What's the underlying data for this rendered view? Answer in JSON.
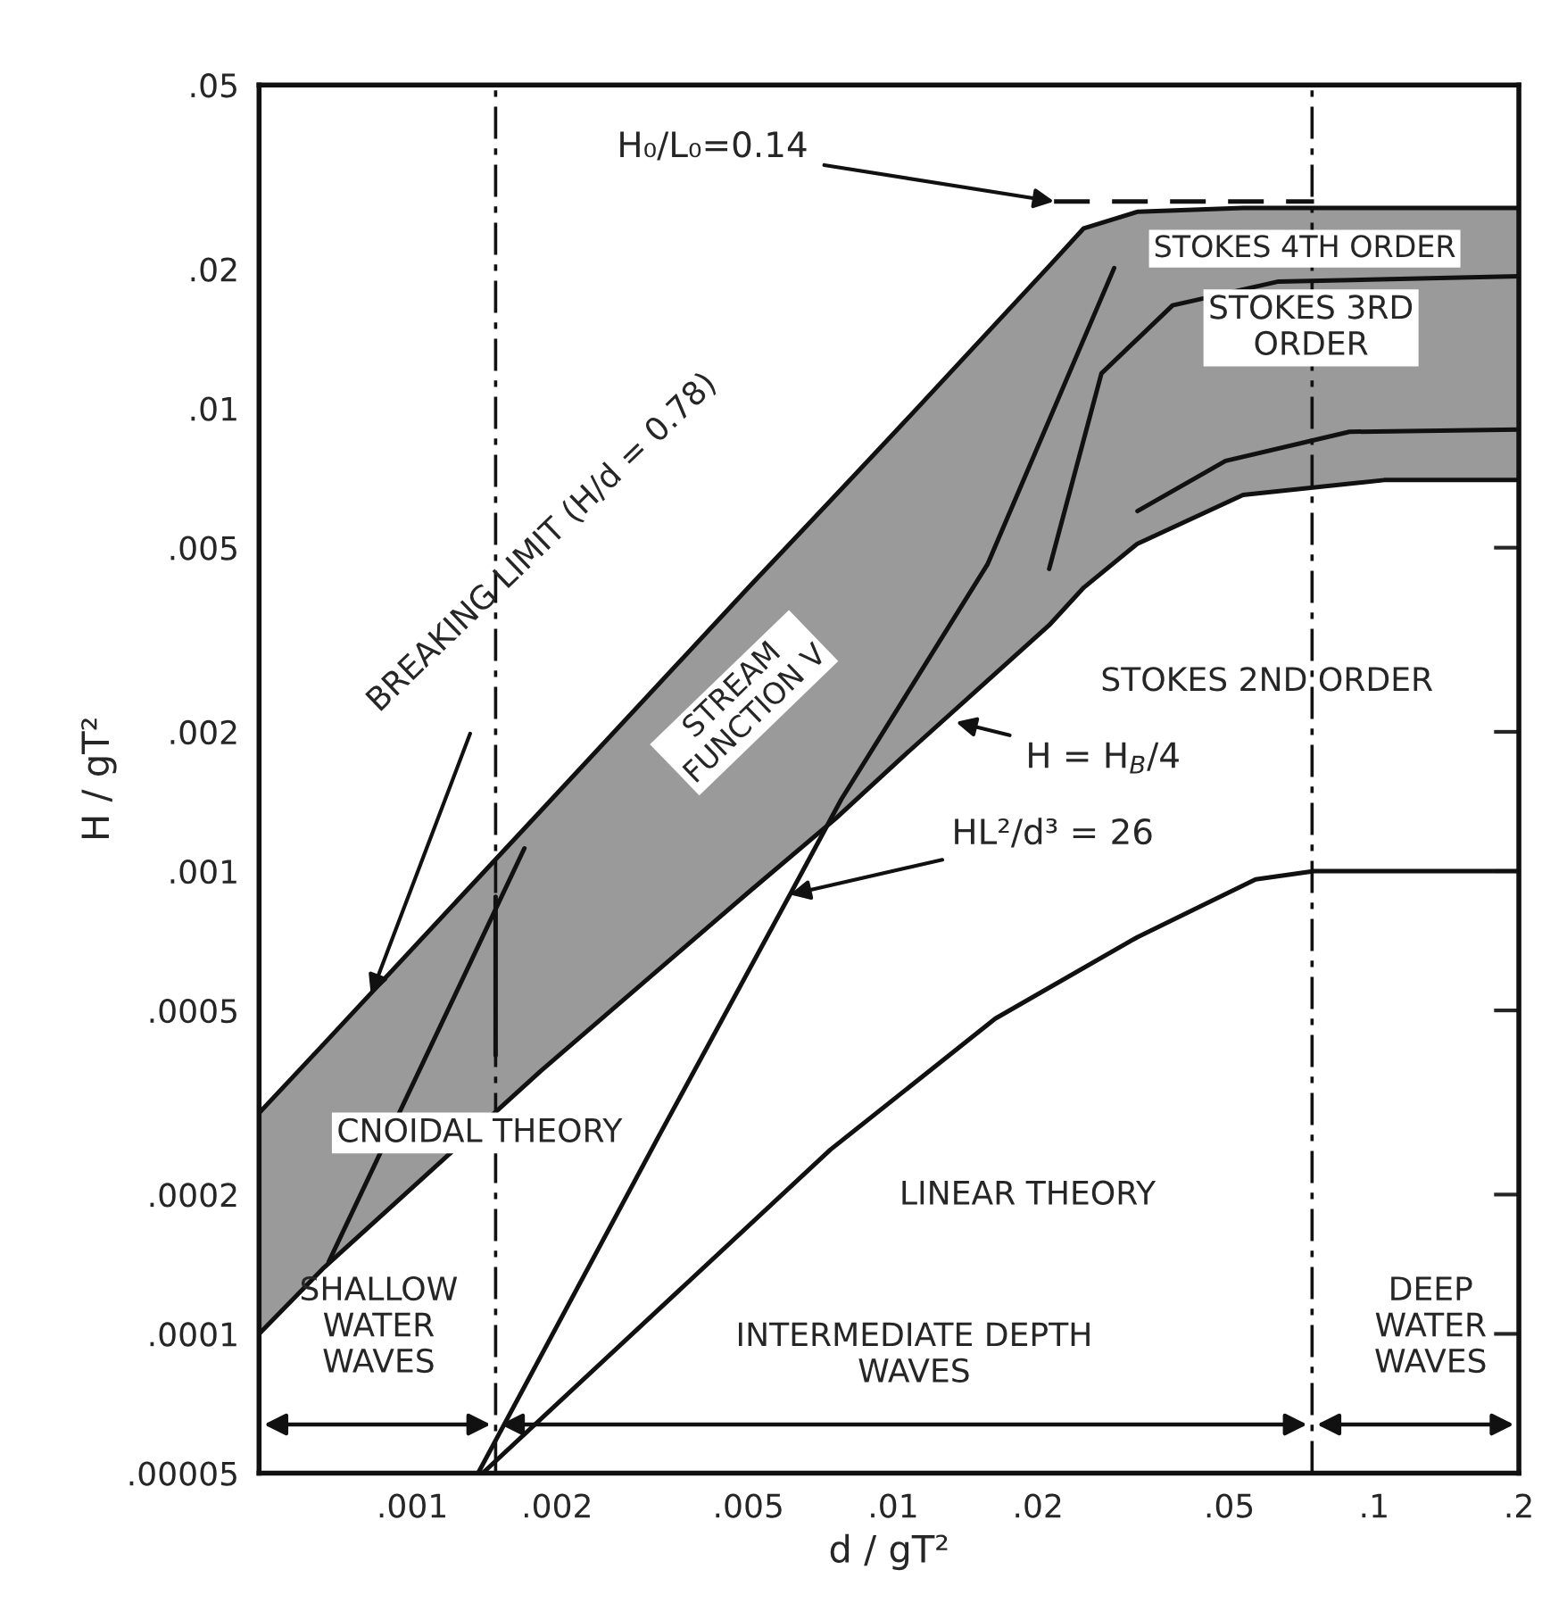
{
  "chart_data": {
    "type": "line",
    "xlabel": "d / gT²",
    "ylabel": "H / gT²",
    "log": "xy",
    "grid": false,
    "marker": "none",
    "xlim": [
      0.00048,
      0.2
    ],
    "ylim": [
      5e-05,
      0.05
    ],
    "xticks": [
      {
        "value": 0.001,
        "label": ".001"
      },
      {
        "value": 0.002,
        "label": ".002"
      },
      {
        "value": 0.005,
        "label": ".005"
      },
      {
        "value": 0.01,
        "label": ".01"
      },
      {
        "value": 0.02,
        "label": ".02"
      },
      {
        "value": 0.05,
        "label": ".05"
      },
      {
        "value": 0.1,
        "label": ".1"
      },
      {
        "value": 0.2,
        "label": ".2"
      }
    ],
    "yticks": [
      {
        "value": 5e-05,
        "label": ".00005"
      },
      {
        "value": 0.0001,
        "label": ".0001"
      },
      {
        "value": 0.0002,
        "label": ".0002"
      },
      {
        "value": 0.0005,
        "label": ".0005"
      },
      {
        "value": 0.001,
        "label": ".001"
      },
      {
        "value": 0.002,
        "label": ".002"
      },
      {
        "value": 0.005,
        "label": ".005"
      },
      {
        "value": 0.01,
        "label": ".01"
      },
      {
        "value": 0.02,
        "label": ".02"
      },
      {
        "value": 0.05,
        "label": ".05"
      }
    ],
    "series": [
      {
        "color": "#111111",
        "x": [
          0.00048,
          0.00065,
          0.00185,
          0.005,
          0.0076,
          0.0103,
          0.0211,
          0.0249,
          0.0322,
          0.0534,
          0.105,
          0.2
        ],
        "values": [
          0.0003,
          0.00042,
          0.00135,
          0.0041,
          0.0065,
          0.0091,
          0.0203,
          0.0245,
          0.0266,
          0.0271,
          0.0271,
          0.0271
        ]
      },
      {
        "color": "#111111",
        "x": [
          0.00048,
          0.00065,
          0.00185,
          0.005,
          0.0076,
          0.0103,
          0.0211,
          0.0249,
          0.0322,
          0.0534,
          0.105,
          0.2
        ],
        "values": [
          0.0001,
          0.000138,
          0.00037,
          0.0009,
          0.0013,
          0.00174,
          0.0034,
          0.0041,
          0.0051,
          0.0065,
          0.007,
          0.007
        ],
        "lower": [
          0.0001,
          0.000138,
          0.00037,
          0.0009,
          0.0013,
          0.00174,
          0.0034,
          0.0041,
          0.0051,
          0.0065,
          0.007,
          0.007
        ],
        "upper": [
          0.0003,
          0.00042,
          0.00135,
          0.0041,
          0.0065,
          0.0091,
          0.0203,
          0.0245,
          0.0266,
          0.0271,
          0.0271,
          0.0271
        ]
      },
      {
        "color": "#111111",
        "x": [
          0.00067,
          0.00171
        ],
        "values": [
          0.000143,
          0.00112
        ]
      },
      {
        "color": "#111111",
        "x": [
          0.00149,
          0.00149
        ],
        "values": [
          0.0004,
          0.00088
        ]
      },
      {
        "color": "#111111",
        "x": [
          0.00137,
          0.00327,
          0.0061,
          0.0078,
          0.0157,
          0.0288
        ],
        "values": [
          5e-05,
          0.00027,
          0.00089,
          0.00143,
          0.0046,
          0.0201
        ]
      },
      {
        "color": "#111111",
        "x": [
          0.0014,
          0.0074,
          0.0163,
          0.0322,
          0.0567,
          0.075,
          0.2
        ],
        "values": [
          5e-05,
          0.00025,
          0.00048,
          0.00072,
          0.00096,
          0.001,
          0.001
        ]
      },
      {
        "color": "#111111",
        "x": [
          0.0211,
          0.0271,
          0.0381,
          0.0633,
          0.2
        ],
        "values": [
          0.0045,
          0.0119,
          0.0167,
          0.0188,
          0.0193
        ]
      },
      {
        "color": "#111111",
        "x": [
          0.0322,
          0.0491,
          0.0889,
          0.2
        ],
        "values": [
          0.006,
          0.0077,
          0.0089,
          0.009
        ]
      },
      {
        "color": "#111111",
        "line_style": "dashed",
        "x": [
          0.0216,
          0.075
        ],
        "values": [
          0.028,
          0.028
        ]
      }
    ],
    "ref_lines": [
      {
        "axis": "x",
        "value": 0.00149,
        "line_style": "dashed",
        "color": "#111111"
      },
      {
        "axis": "x",
        "value": 0.0743,
        "line_style": "dashed",
        "color": "#111111"
      }
    ],
    "annotations": [
      {
        "text": "H₀/L₀=0.14",
        "x": 0.0216,
        "y": 0.028
      },
      "STOKES 4TH ORDER",
      "STOKES 3RD\nORDER",
      {
        "text": "BREAKING LIMIT (H/d = 0.78)",
        "x": 0.00082,
        "y": 0.00054
      },
      "STREAM\nFUNCTION V",
      {
        "text": "H = H$_{B}$/4",
        "x": 0.0135,
        "y": 0.0021
      },
      {
        "text": "HL²/d³ = 26",
        "x": 0.0061,
        "y": 0.00089
      },
      "STOKES 2ND ORDER",
      "CNOIDAL THEORY",
      "LINEAR THEORY",
      "SHALLOW\nWATER\nWAVES",
      "INTERMEDIATE DEPTH\nWAVES",
      "DEEP\nWATER\nWAVES"
    ]
  }
}
